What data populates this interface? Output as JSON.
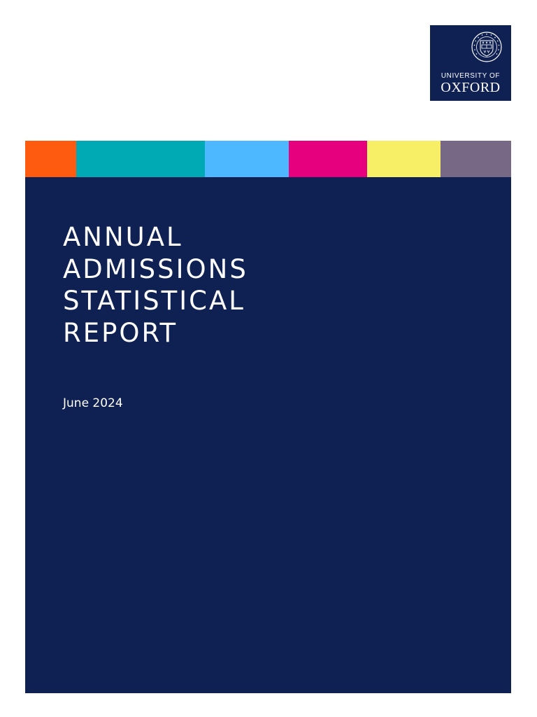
{
  "logo": {
    "university_label": "UNIVERSITY OF",
    "oxford_label": "OXFORD",
    "icon": "university-seal-icon",
    "background": "#0f2052"
  },
  "color_bar": {
    "colors": [
      "#fe5b11",
      "#00aab4",
      "#4db8ff",
      "#e6007e",
      "#f7ef66",
      "#776885"
    ]
  },
  "cover": {
    "background": "#0f2052",
    "title_lines": [
      "ANNUAL",
      "ADMISSIONS",
      "STATISTICAL",
      "REPORT"
    ],
    "date": "June 2024"
  }
}
